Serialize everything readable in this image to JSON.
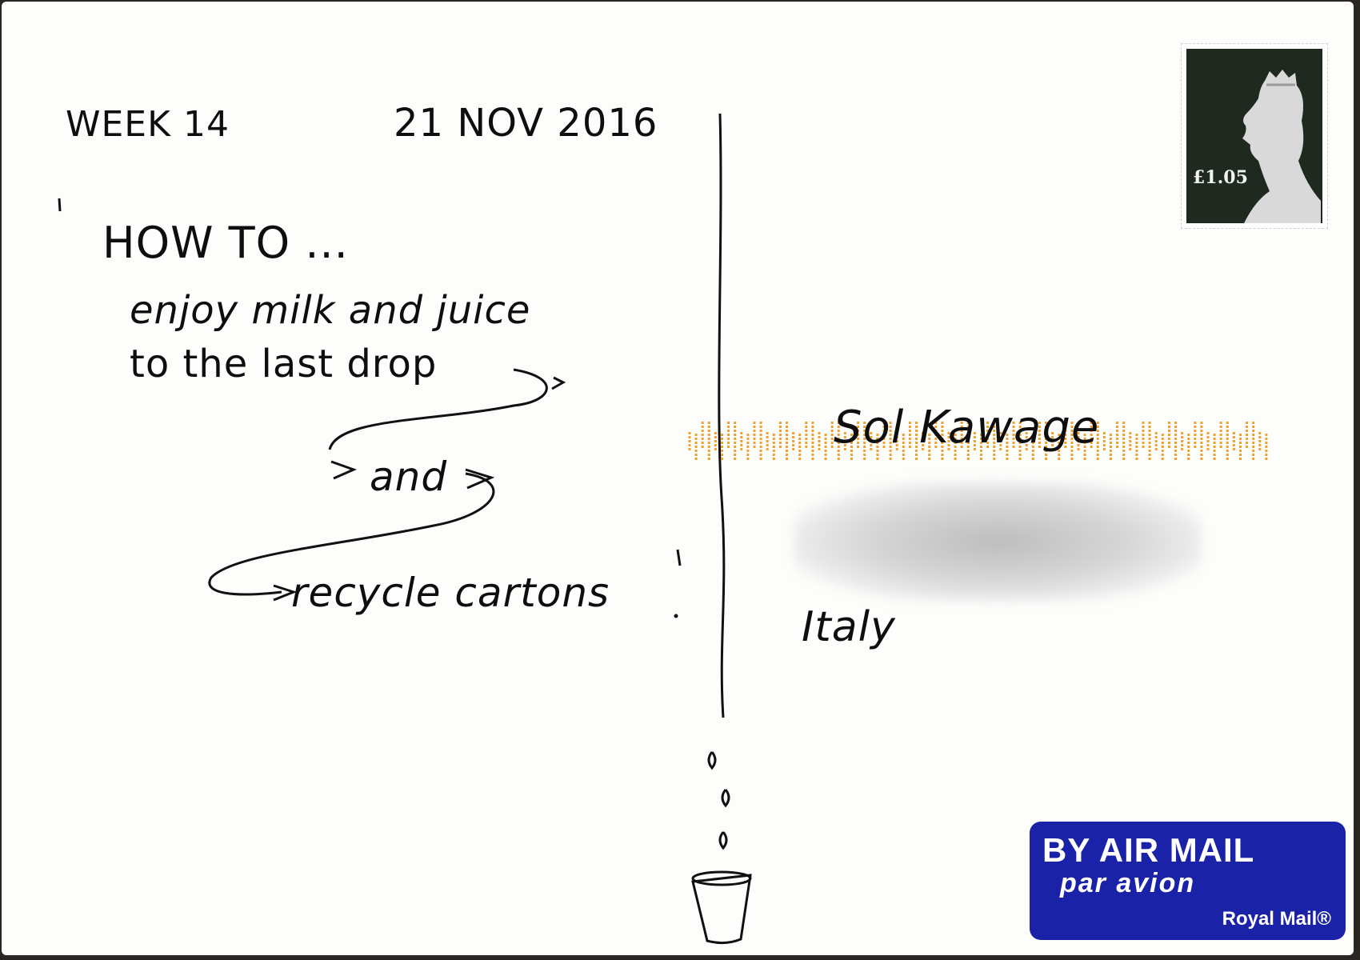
{
  "message": {
    "week": "WEEK 14",
    "date": "21 NOV 2016",
    "heading": "HOW TO ...",
    "line1": "enjoy milk and juice",
    "line2": "to the last drop",
    "line3": "and",
    "line4": "recycle cartons"
  },
  "address": {
    "name": "Sol Kawage",
    "country": "Italy"
  },
  "stamp": {
    "value": "£1.05",
    "background_color": "#1f291f"
  },
  "airmail": {
    "title": "BY AIR MAIL",
    "subtitle": "par avion",
    "brand": "Royal Mail®",
    "color": "#1a23a8"
  },
  "postcode_bar_color": "#f0a030"
}
